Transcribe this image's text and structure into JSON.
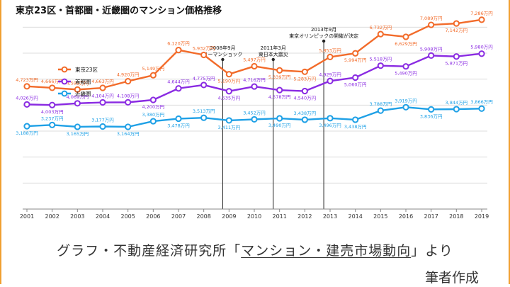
{
  "title": "東京23区・首都圏・近畿圏のマンション価格推移",
  "caption": {
    "prefix": "グラフ・不動産経済研究所「",
    "link": "マンション・建売市場動向",
    "suffix": "」より",
    "line2": "筆者作成"
  },
  "chart_data": {
    "type": "line",
    "x": [
      "2001",
      "2002",
      "2003",
      "2004",
      "2005",
      "2006",
      "2007",
      "2008",
      "2009",
      "2010",
      "2011",
      "2012",
      "2013",
      "2014",
      "2015",
      "2016",
      "2017",
      "2018",
      "2019"
    ],
    "ylim": [
      0,
      7500
    ],
    "grid": true,
    "legend_position": "top-left",
    "series": [
      {
        "name": "東京23区",
        "color": "#f26b2a",
        "values": [
          4723,
          4666,
          4599,
          4663,
          4920,
          5149,
          6120,
          5932,
          5190,
          5497,
          5339,
          5283,
          5853,
          5994,
          6732,
          6629,
          7089,
          7142,
          7286
        ],
        "labels": [
          "4,723万円",
          "4,666万円",
          "4,599万円",
          "4,663万円",
          "4,920万円",
          "5,149万円",
          "6,120万円",
          "5,932万円",
          "5,190万円",
          "5,497万円",
          "5,339万円",
          "5,283万円",
          "5,853万円",
          "5,994万円",
          "6,732万円",
          "6,629万円",
          "7,089万円",
          "7,142万円",
          "7,286万円"
        ]
      },
      {
        "name": "首都圏",
        "color": "#8a2be2",
        "values": [
          4026,
          4003,
          4069,
          4104,
          4108,
          4200,
          4644,
          4775,
          4535,
          4716,
          4578,
          4540,
          4929,
          5060,
          5518,
          5490,
          5908,
          5871,
          5980
        ],
        "labels": [
          "4,026万円",
          "4,003万円",
          "4,069万円",
          "4,104万円",
          "4,108万円",
          "4,200万円",
          "4,644万円",
          "4,775万円",
          "4,535万円",
          "4,716万円",
          "4,578万円",
          "4,540万円",
          "4,929万円",
          "5,060万円",
          "5,518万円",
          "5,490万円",
          "5,908万円",
          "5,871万円",
          "5,980万円"
        ]
      },
      {
        "name": "近畿圏",
        "color": "#1ea0e6",
        "values": [
          3188,
          3237,
          3165,
          3177,
          3164,
          3380,
          3478,
          3513,
          3411,
          3452,
          3490,
          3438,
          3496,
          3438,
          3788,
          3919,
          3836,
          3844,
          3866
        ],
        "labels": [
          "3,188万円",
          "3,237万円",
          "3,165万円",
          "3,177万円",
          "3,164万円",
          "3,380万円",
          "3,478万円",
          "3,513万円",
          "3,411万円",
          "3,452万円",
          "3,490万円",
          "3,438万円",
          "3,496万円",
          "3,438万円",
          "3,788万円",
          "3,919万円",
          "3,836万円",
          "3,844万円",
          "3,866万円"
        ]
      }
    ],
    "annotations": [
      {
        "x_index": 8,
        "lines": [
          "2008年9月",
          "リーマンショック"
        ]
      },
      {
        "x_index": 10,
        "lines": [
          "2011年3月",
          "東日本大震災"
        ]
      },
      {
        "x_index": 12,
        "lines": [
          "2013年9月",
          "東京オリンピックの開催が決定"
        ]
      }
    ]
  }
}
